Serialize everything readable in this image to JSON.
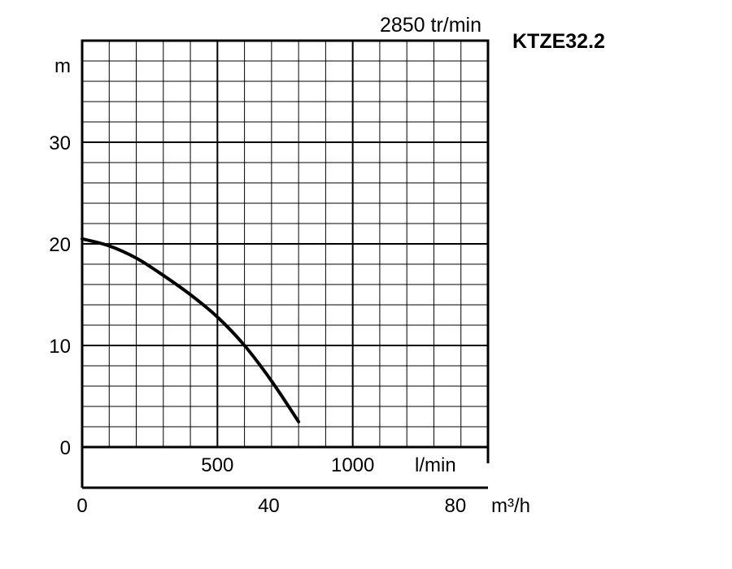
{
  "chart_data": {
    "type": "line",
    "title": "KTZE32.2",
    "speed_label": "2850 tr/min",
    "y_unit": "m",
    "y_ticks": [
      0,
      10,
      20,
      30
    ],
    "ylim": [
      0,
      40
    ],
    "y_minor_step": 2,
    "y_major_step": 10,
    "flow_lmin": {
      "unit": "l/min",
      "ticks": [
        500,
        1000
      ],
      "lim": [
        0,
        1500
      ],
      "minor_step": 100,
      "major_step": 500
    },
    "flow_m3h": {
      "unit": "m³/h",
      "ticks": [
        0,
        40,
        80
      ],
      "lim": [
        0,
        87
      ]
    },
    "grid": true,
    "series": [
      {
        "x_lmin": [
          0,
          100,
          200,
          300,
          400,
          500,
          600,
          700,
          800
        ],
        "y_m": [
          20.5,
          19.8,
          18.6,
          16.9,
          15.0,
          12.8,
          10.0,
          6.5,
          2.5
        ]
      }
    ]
  }
}
